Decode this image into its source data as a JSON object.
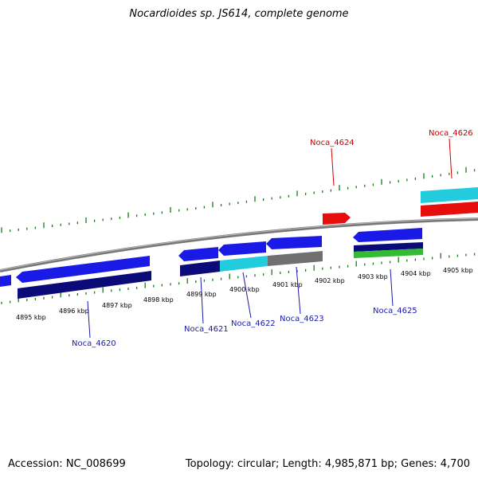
{
  "title": "Nocardioides sp. JS614, complete genome",
  "footer": {
    "accession": "Accession: NC_008699",
    "info": "Topology: circular; Length: 4,985,871 bp; Genes: 4,700"
  },
  "colors": {
    "tick": "#1a7a1a",
    "backbone": "#808080",
    "blue": "#1a1ae6",
    "navy": "#0a0a78",
    "cyan": "#22ccdd",
    "gray": "#707070",
    "red": "#e60d0d",
    "green": "#33bb33",
    "label_blue": "#1a1aaa",
    "label_red": "#cc0000"
  },
  "scale": {
    "labels": [
      "4895 kbp",
      "4896 kbp",
      "4897 kbp",
      "4898 kbp",
      "4899 kbp",
      "4900 kbp",
      "4901 kbp",
      "4902 kbp",
      "4903 kbp",
      "4904 kbp",
      "4905 kbp"
    ]
  },
  "gene_labels": [
    {
      "text": "Noca_4620",
      "strand": "minus"
    },
    {
      "text": "Noca_4621",
      "strand": "minus"
    },
    {
      "text": "Noca_4622",
      "strand": "minus"
    },
    {
      "text": "Noca_4623",
      "strand": "minus"
    },
    {
      "text": "Noca_4625",
      "strand": "minus"
    },
    {
      "text": "Noca_4624",
      "strand": "plus"
    },
    {
      "text": "Noca_4626",
      "strand": "plus"
    }
  ]
}
